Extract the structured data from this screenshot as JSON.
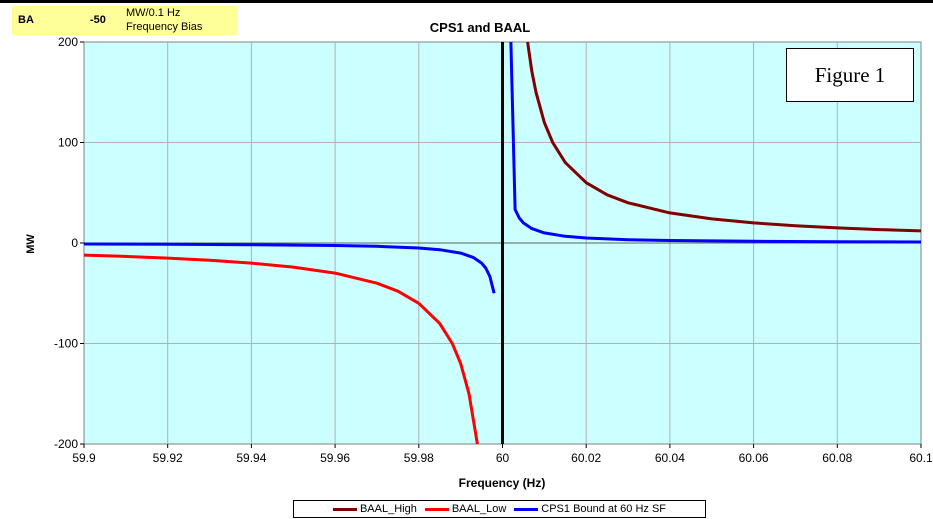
{
  "header": {
    "ba_label": "BA",
    "ba_value": "-50",
    "ba_unit_line1": "MW/0.1 Hz",
    "ba_unit_line2": "Frequency Bias"
  },
  "figure_label": "Figure 1",
  "colors": {
    "plot_bg": "#ccffff",
    "baal_high": "#800000",
    "baal_low": "#ff0000",
    "cps1": "#0000ff"
  },
  "chart_data": {
    "type": "line",
    "title": "CPS1 and BAAL",
    "xlabel": "Frequency (Hz)",
    "ylabel": "MW",
    "xlim": [
      59.9,
      60.1
    ],
    "ylim": [
      -200,
      200
    ],
    "x_ticks": [
      "59.9",
      "59.92",
      "59.94",
      "59.96",
      "59.98",
      "60",
      "60.02",
      "60.04",
      "60.06",
      "60.08",
      "60.1"
    ],
    "y_ticks": [
      "200",
      "100",
      "0",
      "-100",
      "-200"
    ],
    "grid": true,
    "legend_placement": "bottom",
    "vertical_line_x": 60,
    "series": [
      {
        "name": "BAAL_High",
        "color": "#800000",
        "x": [
          60.006,
          60.007,
          60.008,
          60.01,
          60.012,
          60.015,
          60.02,
          60.025,
          60.03,
          60.04,
          60.05,
          60.06,
          60.07,
          60.08,
          60.09,
          60.1
        ],
        "y": [
          200,
          171,
          150,
          120,
          100,
          80,
          60,
          48,
          40,
          30,
          24,
          20,
          17.1,
          15,
          13.3,
          12
        ]
      },
      {
        "name": "BAAL_Low",
        "color": "#ff0000",
        "x": [
          59.9,
          59.91,
          59.92,
          59.93,
          59.94,
          59.95,
          59.96,
          59.97,
          59.975,
          59.98,
          59.985,
          59.988,
          59.99,
          59.992,
          59.994
        ],
        "y": [
          -12,
          -13.3,
          -15,
          -17.1,
          -20,
          -24,
          -30,
          -40,
          -48,
          -60,
          -80,
          -100,
          -120,
          -150,
          -200
        ]
      },
      {
        "name": "CPS1 Bound at 60 Hz SF",
        "color": "#0000ff",
        "x": [
          59.9,
          59.92,
          59.94,
          59.96,
          59.97,
          59.98,
          59.985,
          59.99,
          59.993,
          59.995,
          59.996,
          59.997,
          59.998,
          60.002,
          60.003,
          60.004,
          60.005,
          60.007,
          60.01,
          60.015,
          60.02,
          60.03,
          60.04,
          60.06,
          60.08,
          60.1
        ],
        "y": [
          -1,
          -1.3,
          -1.7,
          -2.5,
          -3.3,
          -5,
          -6.7,
          -10,
          -14.3,
          -20,
          -25,
          -33.3,
          -50,
          200,
          33.3,
          25,
          20,
          14.3,
          10,
          6.7,
          5,
          3.3,
          2.5,
          1.7,
          1.3,
          1
        ]
      }
    ]
  }
}
